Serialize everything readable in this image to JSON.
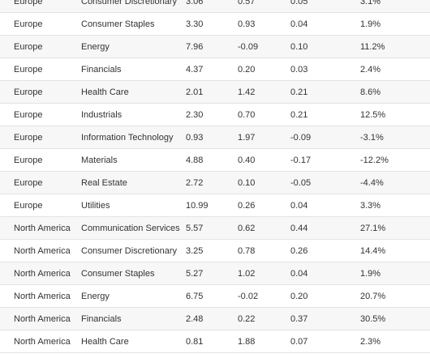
{
  "table": {
    "rows": [
      [
        "Europe",
        "Consumer Discretionary",
        "3.06",
        "0.57",
        "0.05",
        "3.1%"
      ],
      [
        "Europe",
        "Consumer Staples",
        "3.30",
        "0.93",
        "0.04",
        "1.9%"
      ],
      [
        "Europe",
        "Energy",
        "7.96",
        "-0.09",
        "0.10",
        "11.2%"
      ],
      [
        "Europe",
        "Financials",
        "4.37",
        "0.20",
        "0.03",
        "2.4%"
      ],
      [
        "Europe",
        "Health Care",
        "2.01",
        "1.42",
        "0.21",
        "8.6%"
      ],
      [
        "Europe",
        "Industrials",
        "2.30",
        "0.70",
        "0.21",
        "12.5%"
      ],
      [
        "Europe",
        "Information Technology",
        "0.93",
        "1.97",
        "-0.09",
        "-3.1%"
      ],
      [
        "Europe",
        "Materials",
        "4.88",
        "0.40",
        "-0.17",
        "-12.2%"
      ],
      [
        "Europe",
        "Real Estate",
        "2.72",
        "0.10",
        "-0.05",
        "-4.4%"
      ],
      [
        "Europe",
        "Utilities",
        "10.99",
        "0.26",
        "0.04",
        "3.3%"
      ],
      [
        "North America",
        "Communication Services",
        "5.57",
        "0.62",
        "0.44",
        "27.1%"
      ],
      [
        "North America",
        "Consumer Discretionary",
        "3.25",
        "0.78",
        "0.26",
        "14.4%"
      ],
      [
        "North America",
        "Consumer Staples",
        "5.27",
        "1.02",
        "0.04",
        "1.9%"
      ],
      [
        "North America",
        "Energy",
        "6.75",
        "-0.02",
        "0.20",
        "20.7%"
      ],
      [
        "North America",
        "Financials",
        "2.48",
        "0.22",
        "0.37",
        "30.5%"
      ],
      [
        "North America",
        "Health Care",
        "0.81",
        "1.88",
        "0.07",
        "2.3%"
      ]
    ]
  },
  "colors": {
    "row_alt_background": "#f7f7f7",
    "row_background": "#ffffff",
    "row_border": "#e3e3e3",
    "text": "#333333"
  }
}
